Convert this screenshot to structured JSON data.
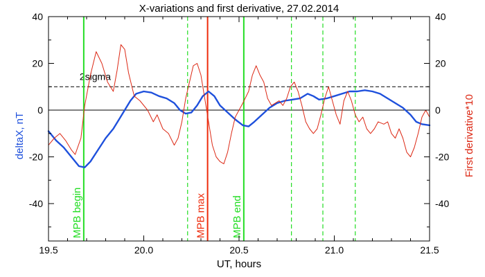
{
  "chart_data": {
    "type": "line",
    "title": "X-variations and first derivative, 27.02.2014",
    "xlabel": "UT, hours",
    "ylabel_left": "deltaX, nT",
    "ylabel_right": "First derivative*10",
    "xlim": [
      19.5,
      21.5
    ],
    "ylim": [
      -56,
      40
    ],
    "x_ticks": [
      19.5,
      20.0,
      20.5,
      21.0,
      21.5
    ],
    "x_tick_labels": [
      "19.5",
      "20.0",
      "20.5",
      "21.0",
      "21.5"
    ],
    "y_ticks": [
      -40,
      -20,
      0,
      20,
      40
    ],
    "y_tick_labels": [
      "-40",
      "-20",
      "0",
      "20",
      "40"
    ],
    "threshold": {
      "value": 10,
      "label": "2sigma"
    },
    "zero_line": 0,
    "series": [
      {
        "name": "deltaX, nT",
        "color": "#1e50dc",
        "points": [
          [
            19.5,
            -9
          ],
          [
            19.54,
            -13
          ],
          [
            19.58,
            -16
          ],
          [
            19.62,
            -20
          ],
          [
            19.66,
            -24
          ],
          [
            19.69,
            -24.5
          ],
          [
            19.72,
            -22
          ],
          [
            19.76,
            -17
          ],
          [
            19.8,
            -12
          ],
          [
            19.84,
            -8
          ],
          [
            19.87,
            -4
          ],
          [
            19.9,
            0
          ],
          [
            19.93,
            4
          ],
          [
            19.96,
            7
          ],
          [
            20.0,
            8
          ],
          [
            20.04,
            7.5
          ],
          [
            20.08,
            6
          ],
          [
            20.12,
            5
          ],
          [
            20.16,
            3
          ],
          [
            20.19,
            0
          ],
          [
            20.22,
            -1.5
          ],
          [
            20.25,
            -1
          ],
          [
            20.28,
            2
          ],
          [
            20.31,
            6
          ],
          [
            20.34,
            8
          ],
          [
            20.37,
            6
          ],
          [
            20.4,
            2
          ],
          [
            20.44,
            -1
          ],
          [
            20.48,
            -4
          ],
          [
            20.52,
            -6.5
          ],
          [
            20.55,
            -7
          ],
          [
            20.58,
            -5
          ],
          [
            20.62,
            -2
          ],
          [
            20.66,
            1
          ],
          [
            20.7,
            3
          ],
          [
            20.74,
            4
          ],
          [
            20.78,
            4.5
          ],
          [
            20.82,
            5
          ],
          [
            20.86,
            7
          ],
          [
            20.89,
            6
          ],
          [
            20.92,
            4.5
          ],
          [
            20.96,
            5
          ],
          [
            21.0,
            6
          ],
          [
            21.04,
            7
          ],
          [
            21.08,
            8
          ],
          [
            21.12,
            8
          ],
          [
            21.16,
            8.5
          ],
          [
            21.2,
            8
          ],
          [
            21.24,
            7
          ],
          [
            21.28,
            5
          ],
          [
            21.32,
            3
          ],
          [
            21.36,
            1
          ],
          [
            21.4,
            -2
          ],
          [
            21.43,
            -5
          ],
          [
            21.46,
            -6
          ],
          [
            21.5,
            -6.5
          ]
        ]
      },
      {
        "name": "First derivative*10",
        "color": "#dc2814",
        "points": [
          [
            19.5,
            -15
          ],
          [
            19.53,
            -12
          ],
          [
            19.56,
            -10
          ],
          [
            19.59,
            -13
          ],
          [
            19.62,
            -17
          ],
          [
            19.64,
            -19
          ],
          [
            19.67,
            -12
          ],
          [
            19.69,
            2
          ],
          [
            19.72,
            15
          ],
          [
            19.75,
            25
          ],
          [
            19.78,
            20
          ],
          [
            19.81,
            12
          ],
          [
            19.84,
            8
          ],
          [
            19.86,
            17
          ],
          [
            19.88,
            28
          ],
          [
            19.9,
            26
          ],
          [
            19.92,
            16
          ],
          [
            19.95,
            6
          ],
          [
            19.98,
            4
          ],
          [
            20.02,
            0
          ],
          [
            20.05,
            -5
          ],
          [
            20.07,
            -2
          ],
          [
            20.1,
            -8
          ],
          [
            20.13,
            -10
          ],
          [
            20.16,
            -15
          ],
          [
            20.18,
            -12
          ],
          [
            20.2,
            -5
          ],
          [
            20.22,
            5
          ],
          [
            20.24,
            12
          ],
          [
            20.26,
            19
          ],
          [
            20.28,
            20
          ],
          [
            20.3,
            15
          ],
          [
            20.32,
            5
          ],
          [
            20.34,
            -5
          ],
          [
            20.36,
            -15
          ],
          [
            20.38,
            -20
          ],
          [
            20.4,
            -22
          ],
          [
            20.42,
            -23
          ],
          [
            20.44,
            -18
          ],
          [
            20.46,
            -10
          ],
          [
            20.48,
            -3
          ],
          [
            20.5,
            0
          ],
          [
            20.52,
            3
          ],
          [
            20.55,
            8
          ],
          [
            20.57,
            15
          ],
          [
            20.59,
            19
          ],
          [
            20.61,
            15
          ],
          [
            20.63,
            12
          ],
          [
            20.65,
            5
          ],
          [
            20.67,
            2
          ],
          [
            20.69,
            3
          ],
          [
            20.71,
            4
          ],
          [
            20.73,
            2
          ],
          [
            20.75,
            5
          ],
          [
            20.77,
            10
          ],
          [
            20.79,
            12
          ],
          [
            20.81,
            8
          ],
          [
            20.83,
            2
          ],
          [
            20.85,
            -5
          ],
          [
            20.87,
            -8
          ],
          [
            20.89,
            -10
          ],
          [
            20.91,
            -8
          ],
          [
            20.93,
            -2
          ],
          [
            20.95,
            5
          ],
          [
            20.97,
            10
          ],
          [
            20.99,
            4
          ],
          [
            21.01,
            -2
          ],
          [
            21.03,
            -6
          ],
          [
            21.05,
            4
          ],
          [
            21.07,
            8
          ],
          [
            21.09,
            4
          ],
          [
            21.11,
            -2
          ],
          [
            21.13,
            -5
          ],
          [
            21.15,
            -3
          ],
          [
            21.17,
            -8
          ],
          [
            21.19,
            -10
          ],
          [
            21.21,
            -8
          ],
          [
            21.23,
            -5
          ],
          [
            21.26,
            -6
          ],
          [
            21.28,
            -5
          ],
          [
            21.3,
            -10
          ],
          [
            21.32,
            -12
          ],
          [
            21.34,
            -8
          ],
          [
            21.36,
            -12
          ],
          [
            21.38,
            -18
          ],
          [
            21.4,
            -20
          ],
          [
            21.42,
            -16
          ],
          [
            21.44,
            -10
          ],
          [
            21.46,
            -3
          ],
          [
            21.48,
            0
          ],
          [
            21.5,
            -3
          ]
        ]
      }
    ],
    "vlines": [
      {
        "x": 19.685,
        "color": "#22dd22",
        "style": "solid",
        "label": "MPB begin"
      },
      {
        "x": 20.23,
        "color": "#22dd22",
        "style": "dashed",
        "label": ""
      },
      {
        "x": 20.335,
        "color": "#ee2a0a",
        "style": "solid",
        "label": "MPB max"
      },
      {
        "x": 20.525,
        "color": "#22dd22",
        "style": "solid",
        "label": "MPB end"
      },
      {
        "x": 20.775,
        "color": "#22dd22",
        "style": "dashed",
        "label": ""
      },
      {
        "x": 20.94,
        "color": "#22dd22",
        "style": "dashed",
        "label": ""
      },
      {
        "x": 21.11,
        "color": "#22dd22",
        "style": "dashed",
        "label": ""
      }
    ],
    "grid": false,
    "legend": "none"
  }
}
